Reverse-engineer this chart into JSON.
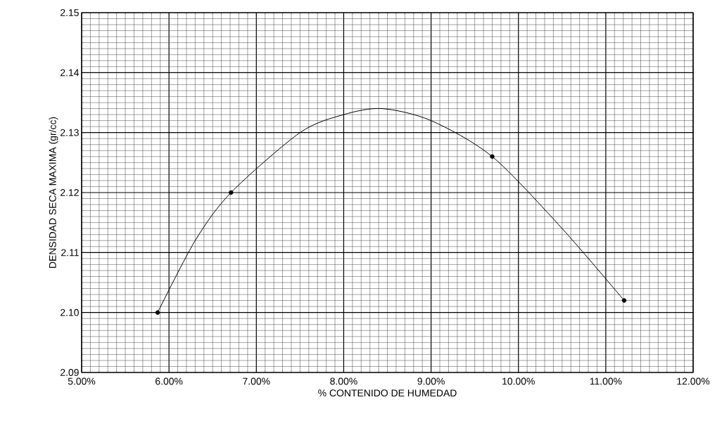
{
  "chart_data": {
    "type": "line",
    "xlabel": "% CONTENIDO DE HUMEDAD",
    "ylabel": "DENSIDAD SECA MAXIMA (gr/cc)",
    "series": [
      {
        "type": "line",
        "color": "#000000",
        "marker": "none",
        "x": [
          5.87,
          6.3,
          6.71,
          7.5,
          8.0,
          8.44,
          9.0,
          9.7,
          10.5,
          11.21
        ],
        "values": [
          2.1,
          2.112,
          2.12,
          2.13,
          2.133,
          2.134,
          2.132,
          2.126,
          2.114,
          2.102
        ]
      },
      {
        "type": "scatter",
        "color": "#000000",
        "marker": "circle",
        "x": [
          5.87,
          6.71,
          9.7,
          11.21
        ],
        "values": [
          2.1,
          2.12,
          2.126,
          2.102
        ]
      }
    ],
    "xlim": [
      5,
      12
    ],
    "ylim": [
      2.09,
      2.15
    ],
    "xticks": [
      {
        "value": 5,
        "label": "5.00%"
      },
      {
        "value": 6,
        "label": "6.00%"
      },
      {
        "value": 7,
        "label": "7.00%"
      },
      {
        "value": 8,
        "label": "8.00%"
      },
      {
        "value": 9,
        "label": "9.00%"
      },
      {
        "value": 10,
        "label": "10.00%"
      },
      {
        "value": 11,
        "label": "11.00%"
      },
      {
        "value": 12,
        "label": "12.00%"
      }
    ],
    "yticks": [
      {
        "value": 2.09,
        "label": "2.09"
      },
      {
        "value": 2.1,
        "label": "2.10"
      },
      {
        "value": 2.11,
        "label": "2.11"
      },
      {
        "value": 2.12,
        "label": "2.12"
      },
      {
        "value": 2.13,
        "label": "2.13"
      },
      {
        "value": 2.14,
        "label": "2.14"
      },
      {
        "value": 2.15,
        "label": "2.15"
      }
    ],
    "grid": true
  }
}
